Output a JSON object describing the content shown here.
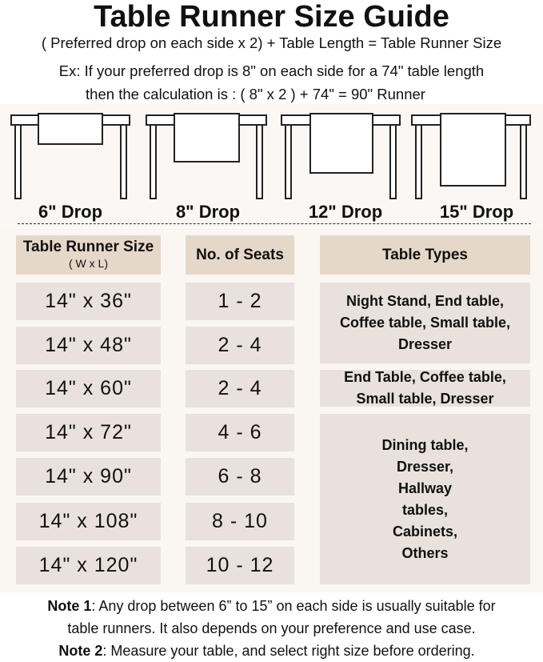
{
  "title": "Table Runner Size Guide",
  "formula": "( Preferred drop on each side x 2) + Table Length = Table Runner Size",
  "example_line1": "Ex: If your preferred drop is 8\" on each side for a 74\" table length",
  "example_line2": "then the calculation is : ( 8\" x 2 ) + 74\" = 90\" Runner",
  "drops": [
    "6\" Drop",
    "8\" Drop",
    "12\" Drop",
    "15\" Drop"
  ],
  "table": {
    "headers": {
      "size": "Table Runner Size",
      "size_sub": "( W x L)",
      "seats": "No. of Seats",
      "types": "Table Types"
    },
    "rows": [
      {
        "size": "14\" x 36\"",
        "seats": "1 - 2"
      },
      {
        "size": "14\" x 48\"",
        "seats": "2 - 4"
      },
      {
        "size": "14\" x 60\"",
        "seats": "2 - 4"
      },
      {
        "size": "14\" x 72\"",
        "seats": "4 - 6"
      },
      {
        "size": "14\" x 90\"",
        "seats": "6 - 8"
      },
      {
        "size": "14\" x 108\"",
        "seats": "8 - 10"
      },
      {
        "size": "14\" x 120\"",
        "seats": "10 - 12"
      }
    ],
    "types": [
      "Night Stand, End table, Coffee table, Small table, Dresser",
      "End Table, Coffee table, Small table, Dresser",
      "Dining table, Dresser, Hallway tables, Cabinets, Others"
    ]
  },
  "notes": {
    "note1_label": "Note 1",
    "note1_text": ": Any drop between 6” to 15” on each side is usually suitable for",
    "note1_line2": "table runners. It also depends on your preference and use case.",
    "note2_label": "Note 2",
    "note2_text": ": Measure your table, and select right size before ordering."
  },
  "colors": {
    "header_cell": "#e6d8c8",
    "body_cell": "#e9e1db",
    "panel": "#faf6f2"
  }
}
